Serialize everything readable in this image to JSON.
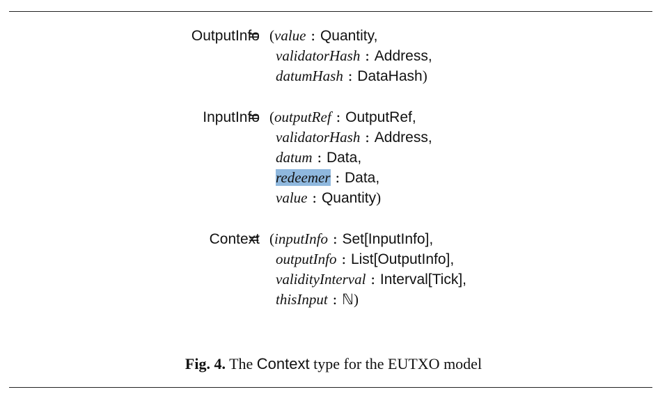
{
  "blocks": [
    {
      "name": "OutputInfo",
      "fields": [
        {
          "name": "value",
          "type": "Quantity",
          "end": ","
        },
        {
          "name": "validatorHash",
          "type": "Address",
          "end": ","
        },
        {
          "name": "datumHash",
          "type": "DataHash",
          "end": ")"
        }
      ]
    },
    {
      "name": "InputInfo",
      "fields": [
        {
          "name": "outputRef",
          "type": "OutputRef",
          "end": ","
        },
        {
          "name": "validatorHash",
          "type": "Address",
          "end": ","
        },
        {
          "name": "datum",
          "type": "Data",
          "end": ","
        },
        {
          "name": "redeemer",
          "type": "Data",
          "end": ","
        },
        {
          "name": "value",
          "type": "Quantity",
          "end": ")"
        }
      ]
    },
    {
      "name": "Context",
      "fields": [
        {
          "name": "inputInfo",
          "type": "Set[InputInfo]",
          "end": ","
        },
        {
          "name": "outputInfo",
          "type": "List[OutputInfo]",
          "end": ","
        },
        {
          "name": "validityInterval",
          "type": "Interval[Tick]",
          "end": ","
        },
        {
          "name": "thisInput",
          "type": "ℕ",
          "end": ")"
        }
      ]
    }
  ],
  "symbols": {
    "equals": "=",
    "open_paren": "(",
    "colon": ":"
  },
  "caption": {
    "label": "Fig. 4.",
    "text_before": " The ",
    "code_word": "Context",
    "text_after": " type for the EUTXO model"
  },
  "highlight_color": "#8fb8de"
}
